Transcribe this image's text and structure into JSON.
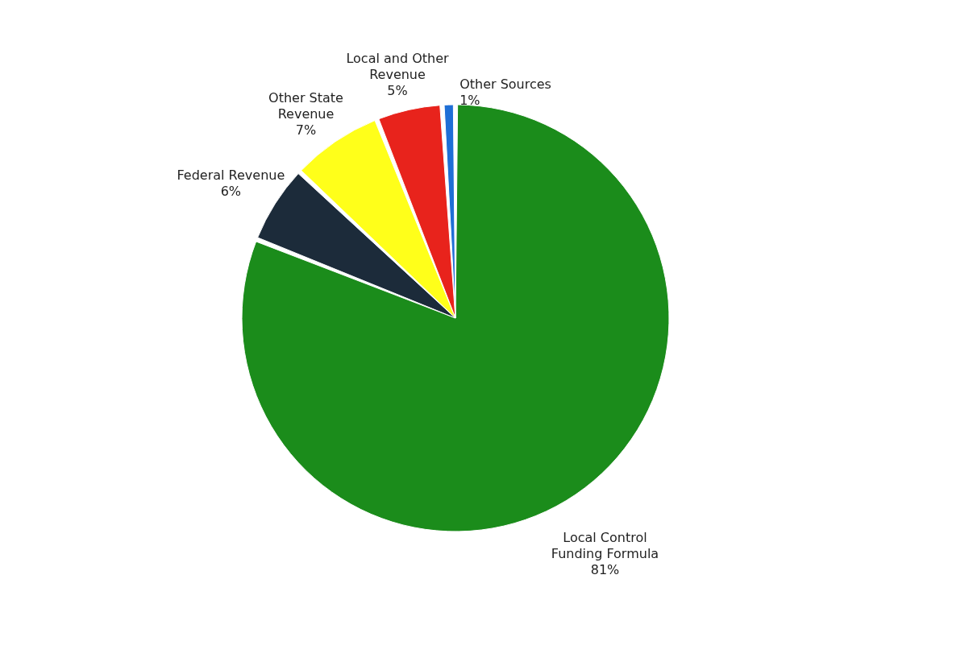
{
  "chart_data": {
    "type": "pie",
    "categories": [
      "Local Control Funding Formula",
      "Federal Revenue",
      "Other State Revenue",
      "Local and Other Revenue",
      "Other Sources"
    ],
    "values": [
      81,
      6,
      7,
      5,
      1
    ],
    "colors": [
      "#1b8c1b",
      "#1c2b3a",
      "#ffff1a",
      "#e8231c",
      "#1f6fd6"
    ],
    "value_labels": [
      "81%",
      "6%",
      "7%",
      "5%",
      "1%"
    ]
  }
}
